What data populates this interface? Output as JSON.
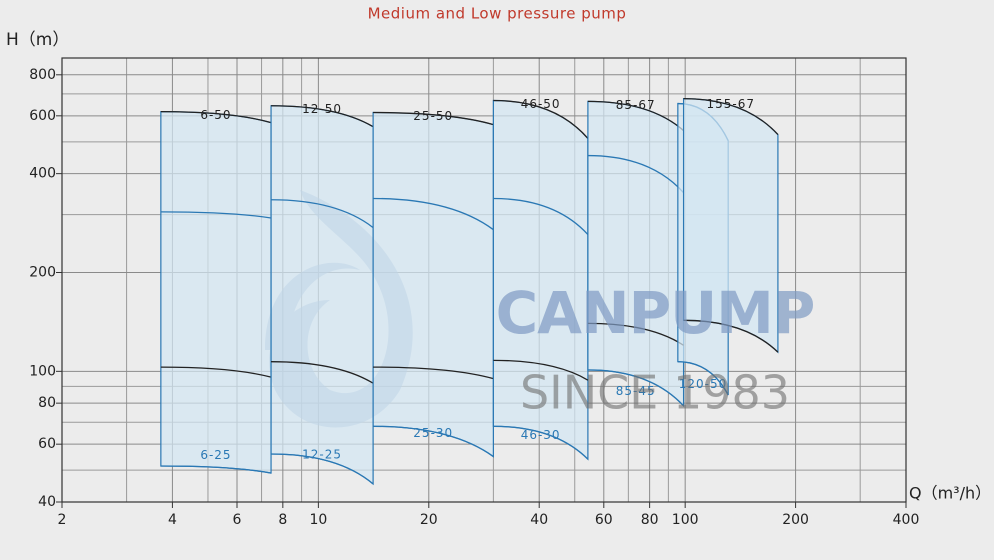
{
  "chart_data": {
    "type": "pump-map",
    "title": "Medium and Low pressure pump",
    "x_label": "Q（m³/h）",
    "y_label": "H（m）",
    "log_x": true,
    "log_y": true,
    "grid": true,
    "xlim": [
      2,
      400
    ],
    "ylim": [
      40,
      900
    ],
    "xticks": [
      2,
      4,
      6,
      8,
      10,
      20,
      40,
      60,
      80,
      100,
      200,
      400
    ],
    "xminor": [
      3,
      5,
      7,
      9,
      30,
      50,
      70,
      90,
      300
    ],
    "yticks": [
      40,
      60,
      80,
      100,
      200,
      400,
      600,
      800
    ],
    "yminor": [
      50,
      70,
      90,
      300,
      500,
      700
    ],
    "region_color": "#2a78b4",
    "watermark": [
      "CANPUMP",
      "SINCE 1983"
    ],
    "regions": [
      {
        "q": [
          3.72,
          7.43
        ],
        "curves": [
          {
            "h": [
              618,
              572
            ],
            "color": "#222222"
          },
          {
            "h": [
              306,
              293
            ],
            "color": "#2a78b4"
          },
          {
            "h": [
              103,
              96
            ],
            "color": "#222222"
          },
          {
            "h": [
              51.5,
              49
            ],
            "color": "#2a78b4"
          }
        ],
        "labels": [
          {
            "text": "6-50",
            "color": "#222222"
          },
          {
            "text": "6-25",
            "color": "#2a78b4"
          }
        ]
      },
      {
        "q": [
          7.43,
          14.1
        ],
        "curves": [
          {
            "h": [
              644,
              556
            ],
            "color": "#222222"
          },
          {
            "h": [
              333,
              274
            ],
            "color": "#2a78b4"
          },
          {
            "h": [
              107,
              92
            ],
            "color": "#222222"
          },
          {
            "h": [
              56,
              45.4
            ],
            "color": "#2a78b4"
          }
        ],
        "labels": [
          {
            "text": "12-50",
            "color": "#222222"
          },
          {
            "text": "12-25",
            "color": "#2a78b4"
          }
        ]
      },
      {
        "q": [
          14.1,
          30
        ],
        "curves": [
          {
            "h": [
              614,
              564
            ],
            "color": "#222222"
          },
          {
            "h": [
              336,
              270
            ],
            "color": "#2a78b4"
          },
          {
            "h": [
              103,
              95
            ],
            "color": "#222222"
          },
          {
            "h": [
              68,
              55
            ],
            "color": "#2a78b4"
          }
        ],
        "labels": [
          {
            "text": "25-50",
            "color": "#222222"
          },
          {
            "text": "25-30",
            "color": "#2a78b4"
          }
        ]
      },
      {
        "q": [
          30,
          54.3
        ],
        "curves": [
          {
            "h": [
              668,
              512
            ],
            "color": "#222222"
          },
          {
            "h": [
              336,
              261
            ],
            "color": "#2a78b4"
          },
          {
            "h": [
              108,
              94
            ],
            "color": "#222222"
          },
          {
            "h": [
              68,
              54
            ],
            "color": "#2a78b4"
          }
        ],
        "labels": [
          {
            "text": "46-50",
            "color": "#222222"
          },
          {
            "text": "46-30",
            "color": "#2a78b4"
          }
        ]
      },
      {
        "q": [
          54.3,
          99
        ],
        "curves": [
          {
            "h": [
              664,
              541
            ],
            "color": "#222222"
          },
          {
            "h": [
              454,
              350
            ],
            "color": "#2a78b4"
          },
          {
            "h": [
              140,
              120
            ],
            "color": "#222222"
          },
          {
            "h": [
              101,
              78.5
            ],
            "color": "#2a78b4"
          }
        ],
        "labels": [
          {
            "text": "85-67",
            "color": "#222222"
          },
          {
            "text": "85-45",
            "color": "#2a78b4"
          }
        ]
      },
      {
        "q": [
          95.5,
          131
        ],
        "curves": [
          {
            "h": [
              654,
              504
            ],
            "color": "#2a78b4"
          },
          {
            "h": [
              107,
              84.7
            ],
            "color": "#2a78b4"
          }
        ],
        "labels": [
          {
            "text": "120-50",
            "color": "#2a78b4"
          }
        ]
      },
      {
        "q": [
          99,
          179
        ],
        "curves": [
          {
            "h": [
              677,
              526
            ],
            "color": "#222222"
          },
          {
            "h": [
              143,
              114.4
            ],
            "color": "#222222"
          }
        ],
        "labels": [
          {
            "text": "155-67",
            "color": "#222222"
          }
        ]
      }
    ]
  }
}
